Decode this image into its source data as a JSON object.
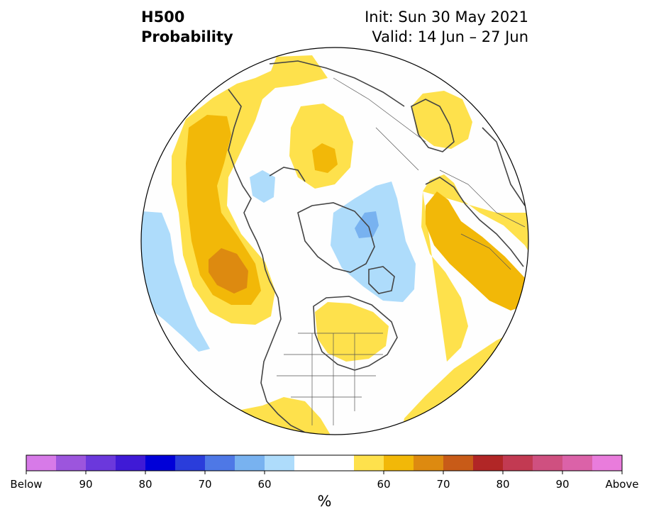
{
  "title": {
    "left_line1": "H500",
    "left_line2": "Probability",
    "right_line1": "Init: Sun 30 May 2021",
    "right_line2": "Valid: 14 Jun – 27 Jun"
  },
  "colorbar": {
    "unit": "%",
    "tick_labels": [
      "Below",
      "90",
      "80",
      "70",
      "60",
      "60",
      "70",
      "80",
      "90",
      "Above"
    ],
    "colors": [
      "#d77ae8",
      "#9c55dd",
      "#6b38dc",
      "#3f1ad6",
      "#0000d8",
      "#2a3ddb",
      "#4e78e6",
      "#78b2f0",
      "#aedcfb",
      "#ffffff",
      "#ffffff",
      "#fee14c",
      "#f2b808",
      "#dd8a10",
      "#c85b18",
      "#b12626",
      "#c23a52",
      "#cf5080",
      "#db62a8",
      "#e97cdc"
    ]
  },
  "anomaly_colors": {
    "above_light": "#fee14c",
    "above_medium": "#f2b808",
    "above_strong": "#dd8a10",
    "below_light": "#aedcfb",
    "below_medium": "#78b2f0"
  }
}
